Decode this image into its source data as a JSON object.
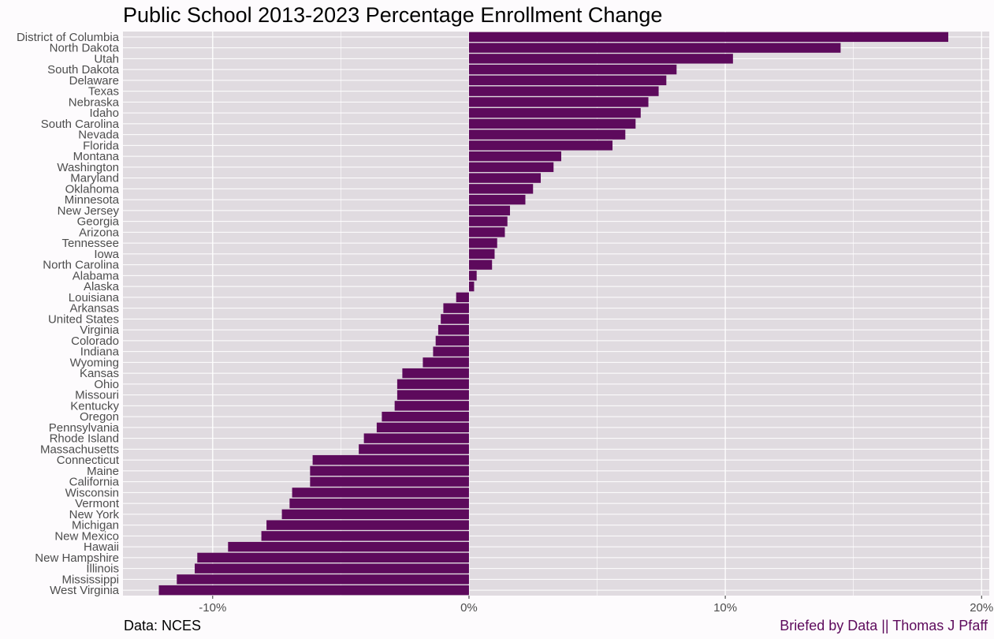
{
  "chart_data": {
    "type": "bar",
    "orientation": "horizontal",
    "title": "Public School 2013-2023 Percentage Enrollment Change",
    "xlabel": "",
    "ylabel": "",
    "xlim": [
      -13.5,
      20.3
    ],
    "xticks": [
      -10,
      0,
      10,
      20
    ],
    "xtick_labels": [
      "-10%",
      "0%",
      "10%",
      "20%"
    ],
    "bar_color": "#5d0a5c",
    "panel_color": "#e0dbe0",
    "grid": true,
    "categories": [
      "District of Columbia",
      "North Dakota",
      "Utah",
      "South Dakota",
      "Delaware",
      "Texas",
      "Nebraska",
      "Idaho",
      "South Carolina",
      "Nevada",
      "Florida",
      "Montana",
      "Washington",
      "Maryland",
      "Oklahoma",
      "Minnesota",
      "New Jersey",
      "Georgia",
      "Arizona",
      "Tennessee",
      "Iowa",
      "North Carolina",
      "Alabama",
      "Alaska",
      "Louisiana",
      "Arkansas",
      "United States",
      "Virginia",
      "Colorado",
      "Indiana",
      "Wyoming",
      "Kansas",
      "Ohio",
      "Missouri",
      "Kentucky",
      "Oregon",
      "Pennsylvania",
      "Rhode Island",
      "Massachusetts",
      "Connecticut",
      "Maine",
      "California",
      "Wisconsin",
      "Vermont",
      "New York",
      "Michigan",
      "New Mexico",
      "Hawaii",
      "New Hampshire",
      "Illinois",
      "Mississippi",
      "West Virginia"
    ],
    "values": [
      18.7,
      14.5,
      10.3,
      8.1,
      7.7,
      7.4,
      7.0,
      6.7,
      6.5,
      6.1,
      5.6,
      3.6,
      3.3,
      2.8,
      2.5,
      2.2,
      1.6,
      1.5,
      1.4,
      1.1,
      1.0,
      0.9,
      0.3,
      0.2,
      -0.5,
      -1.0,
      -1.1,
      -1.2,
      -1.3,
      -1.4,
      -1.8,
      -2.6,
      -2.8,
      -2.8,
      -2.9,
      -3.4,
      -3.6,
      -4.1,
      -4.3,
      -6.1,
      -6.2,
      -6.2,
      -6.9,
      -7.0,
      -7.3,
      -7.9,
      -8.1,
      -9.4,
      -10.6,
      -10.7,
      -11.4,
      -12.1
    ]
  },
  "captions": {
    "left": "Data: NCES",
    "right": "Briefed by Data || Thomas J Pfaff"
  }
}
